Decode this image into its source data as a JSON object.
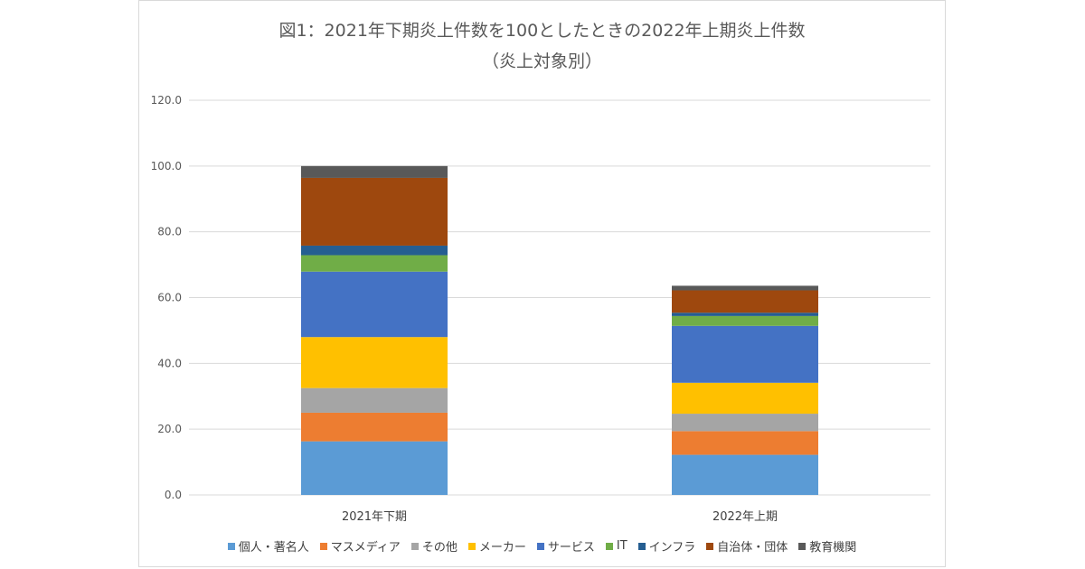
{
  "chart_data": {
    "type": "bar",
    "stacked": true,
    "title": "図1：2021年下期炎上件数を100としたときの2022年上期炎上件数",
    "subtitle": "（炎上対象別）",
    "categories": [
      "2021年下期",
      "2022年上期"
    ],
    "ylim": [
      0,
      120
    ],
    "yticks": [
      0,
      20,
      40,
      60,
      80,
      100,
      120
    ],
    "ytick_labels": [
      "0.0",
      "20.0",
      "40.0",
      "60.0",
      "80.0",
      "100.0",
      "120.0"
    ],
    "grid": true,
    "legend_position": "bottom",
    "series": [
      {
        "name": "個人・著名人",
        "color": "#5b9bd5",
        "values": [
          16.3,
          12.2
        ]
      },
      {
        "name": "マスメディア",
        "color": "#ed7d31",
        "values": [
          8.7,
          7.2
        ]
      },
      {
        "name": "その他",
        "color": "#a5a5a5",
        "values": [
          7.5,
          5.3
        ]
      },
      {
        "name": "メーカー",
        "color": "#ffc000",
        "values": [
          15.5,
          9.4
        ]
      },
      {
        "name": "サービス",
        "color": "#4472c4",
        "values": [
          19.9,
          17.3
        ]
      },
      {
        "name": "IT",
        "color": "#70ad47",
        "values": [
          5.0,
          3.0
        ]
      },
      {
        "name": "インフラ",
        "color": "#255e91",
        "values": [
          2.9,
          1.0
        ]
      },
      {
        "name": "自治体・団体",
        "color": "#9e480e",
        "values": [
          20.6,
          6.8
        ]
      },
      {
        "name": "教育機関",
        "color": "#595959",
        "values": [
          3.6,
          1.4
        ]
      }
    ]
  }
}
